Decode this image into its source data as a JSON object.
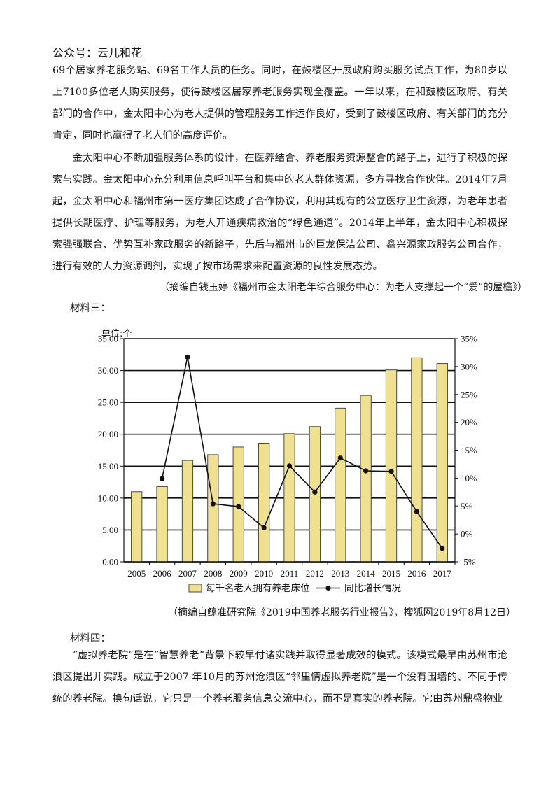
{
  "header": {
    "title": "公众号：云儿和花"
  },
  "paragraphs": {
    "p1": "69个居家养老服务站、69名工作人员的任务。同时，在鼓楼区开展政府购买服务试点工作，为80岁以上7100多位老人购买服务，使得鼓楼区居家养老服务实现全覆盖。一年以来，在和鼓楼区政府、有关部门的合作中，金太阳中心为老人提供的管理服务工作运作良好，受到了鼓楼区政府、有关部门的充分肯定，同时也赢得了老人们的高度评价。",
    "p2": "金太阳中心不断加强服务体系的设计，在医养结合、养老服务资源整合的路子上，进行了积极的探索与实践。金太阳中心充分利用信息呼叫平台和集中的老人群体资源，多方寻找合作伙伴。2014年7月起，金太阳中心和福州市第一医疗集团达成了合作协议，利用其现有的公立医疗卫生资源，为老年患者提供长期医疗、护理等服务，为老人开通疾病救治的“绿色通道”。2014年上半年，金太阳中心积极探索强强联合、优势互补家政服务的新路子，先后与福州市的巨龙保洁公司、鑫兴源家政服务公司合作，进行有效的人力资源调剂，实现了按市场需求来配置资源的良性发展态势。",
    "source1": "（摘编自钱玉婷《福州市金太阳老年综合服务中心：为老人支撑起一个“爱”的屋檐》）",
    "label3": "材料三：",
    "source2": "（摘编自鲸准研究院《2019中国养老服务行业报告》，搜狐网2019年8月12日）",
    "label4": "材料四：",
    "p3": "“虚拟养老院”是在“智慧养老”背景下较早付诸实践并取得显著成效的模式。该模式最早由苏州市沧浪区提出并实践。成立于2007 年10月的苏州沧浪区“邻里情虚拟养老院”是一个没有围墙的、不同于传统的养老院。换句话说，它只是一个养老服务信息交流中心，而不是真实的养老院。它由苏州鼎盛物业"
  },
  "chart_data": {
    "type": "bar+line",
    "unit_label": "单位:个",
    "categories": [
      "2005",
      "2006",
      "2007",
      "2008",
      "2009",
      "2010",
      "2011",
      "2012",
      "2013",
      "2014",
      "2015",
      "2016",
      "2017"
    ],
    "series": [
      {
        "name": "每千名老人拥有养老床位",
        "type": "bar",
        "axis": "left",
        "values": [
          11.0,
          11.8,
          15.9,
          16.8,
          18.0,
          18.6,
          20.1,
          21.2,
          24.1,
          26.1,
          30.1,
          32.0,
          31.1
        ],
        "color": "#efe18f",
        "stroke": "#4a4a4a"
      },
      {
        "name": "同比增长情况",
        "type": "line",
        "axis": "right",
        "values": [
          null,
          9.9,
          31.7,
          5.4,
          4.9,
          1.1,
          12.2,
          7.5,
          13.6,
          11.3,
          11.2,
          4.0,
          -2.6
        ],
        "color": "#111111"
      }
    ],
    "left_axis": {
      "range": [
        0,
        35
      ],
      "ticks": [
        "0.00",
        "5.00",
        "10.00",
        "15.00",
        "20.00",
        "25.00",
        "30.00",
        "35.00"
      ]
    },
    "right_axis": {
      "range": [
        -5,
        35
      ],
      "ticks": [
        "-5%",
        "0%",
        "5%",
        "10%",
        "15%",
        "20%",
        "25%",
        "30%",
        "35%"
      ]
    },
    "grid": "horizontal",
    "legend_position": "bottom"
  }
}
